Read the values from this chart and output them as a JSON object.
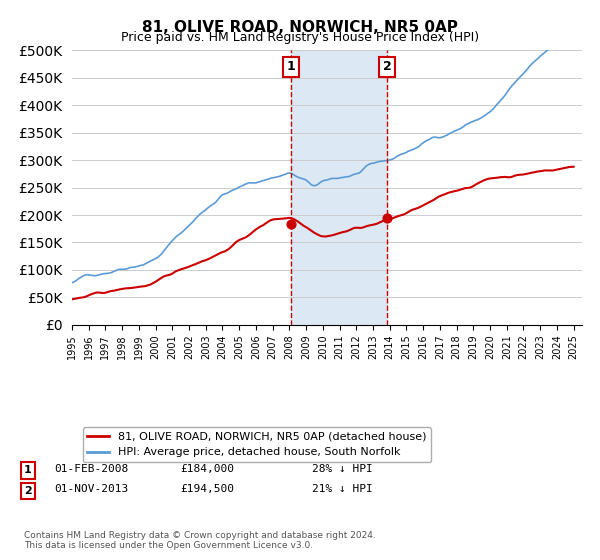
{
  "title": "81, OLIVE ROAD, NORWICH, NR5 0AP",
  "subtitle": "Price paid vs. HM Land Registry's House Price Index (HPI)",
  "legend_line1": "81, OLIVE ROAD, NORWICH, NR5 0AP (detached house)",
  "legend_line2": "HPI: Average price, detached house, South Norfolk",
  "annotation1_label": "1",
  "annotation1_date": "01-FEB-2008",
  "annotation1_price": "£184,000",
  "annotation1_hpi": "28% ↓ HPI",
  "annotation2_label": "2",
  "annotation2_date": "01-NOV-2013",
  "annotation2_price": "£194,500",
  "annotation2_hpi": "21% ↓ HPI",
  "footer": "Contains HM Land Registry data © Crown copyright and database right 2024.\nThis data is licensed under the Open Government Licence v3.0.",
  "red_color": "#cc0000",
  "blue_color": "#5b9bd5",
  "shaded_region_color": "#dce9f5",
  "vline_color": "#cc0000",
  "ylim": [
    0,
    500000
  ],
  "yticks": [
    0,
    50000,
    100000,
    150000,
    200000,
    250000,
    300000,
    350000,
    400000,
    450000,
    500000
  ],
  "xlabel_start_year": 1995,
  "xlabel_end_year": 2025
}
